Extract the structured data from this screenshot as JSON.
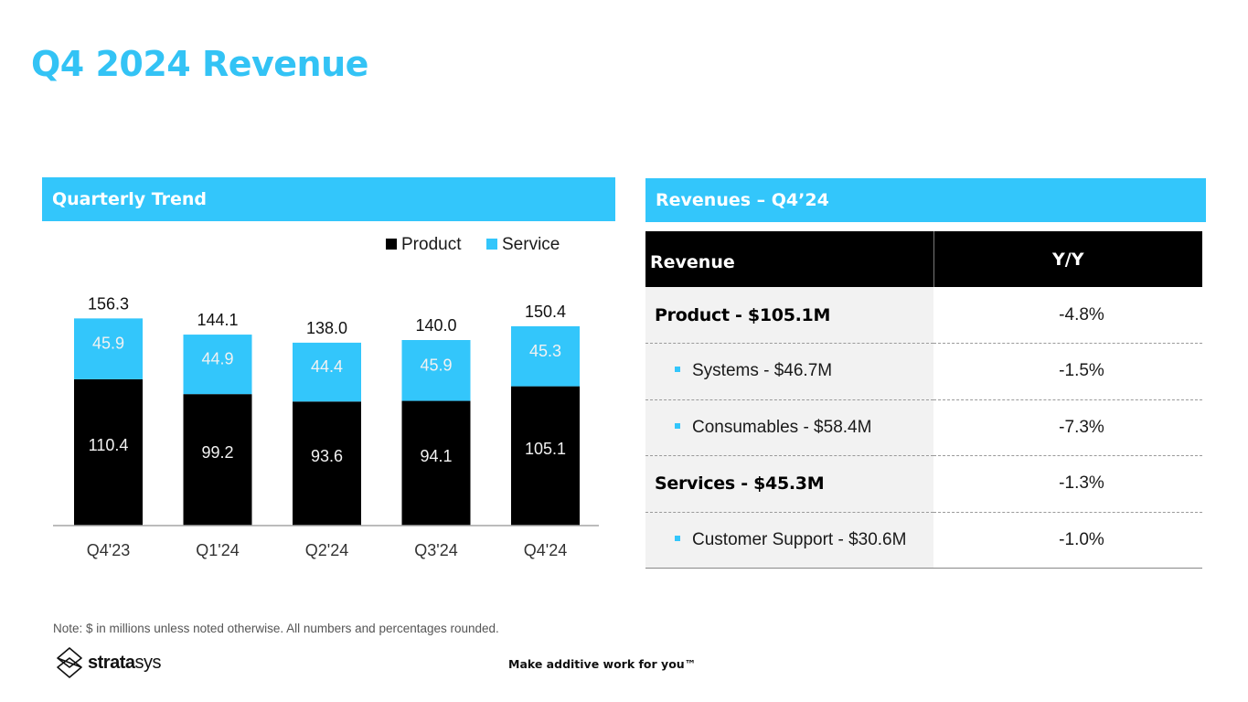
{
  "page": {
    "title": "Q4 2024 Revenue"
  },
  "left_panel": {
    "header": "Quarterly Trend"
  },
  "right_panel": {
    "header": "Revenues – Q4’24",
    "table": {
      "columns": [
        "Revenue",
        "Y/Y"
      ],
      "rows": [
        {
          "label": "Product - $105.1M",
          "yy": "-4.8%",
          "level": "main"
        },
        {
          "label": "Systems - $46.7M",
          "yy": "-1.5%",
          "level": "sub"
        },
        {
          "label": "Consumables - $58.4M",
          "yy": "-7.3%",
          "level": "sub"
        },
        {
          "label": "Services - $45.3M",
          "yy": "-1.3%",
          "level": "main"
        },
        {
          "label": "Customer Support - $30.6M",
          "yy": "-1.0%",
          "level": "sub"
        }
      ]
    }
  },
  "footer": {
    "note": "Note: $ in millions unless noted otherwise. All numbers and percentages rounded.",
    "logo_bold": "strata",
    "logo_light": "sys",
    "tagline": "Make additive work for you™"
  },
  "colors": {
    "accent": "#33c6fb",
    "title": "#33c3f5",
    "product": "#000000",
    "service": "#33c6fb"
  },
  "chart_data": {
    "type": "bar",
    "stacked": true,
    "title": "Quarterly Trend",
    "xlabel": "",
    "ylabel": "",
    "categories": [
      "Q4'23",
      "Q1'24",
      "Q2'24",
      "Q3'24",
      "Q4'24"
    ],
    "series": [
      {
        "name": "Product",
        "color": "#000000",
        "values": [
          110.4,
          99.2,
          93.6,
          94.1,
          105.1
        ]
      },
      {
        "name": "Service",
        "color": "#33c6fb",
        "values": [
          45.9,
          44.9,
          44.4,
          45.9,
          45.3
        ]
      }
    ],
    "totals": [
      156.3,
      144.1,
      138.0,
      140.0,
      150.4
    ],
    "ylim": [
      0,
      180
    ],
    "grid": false,
    "legend": "top-right"
  }
}
